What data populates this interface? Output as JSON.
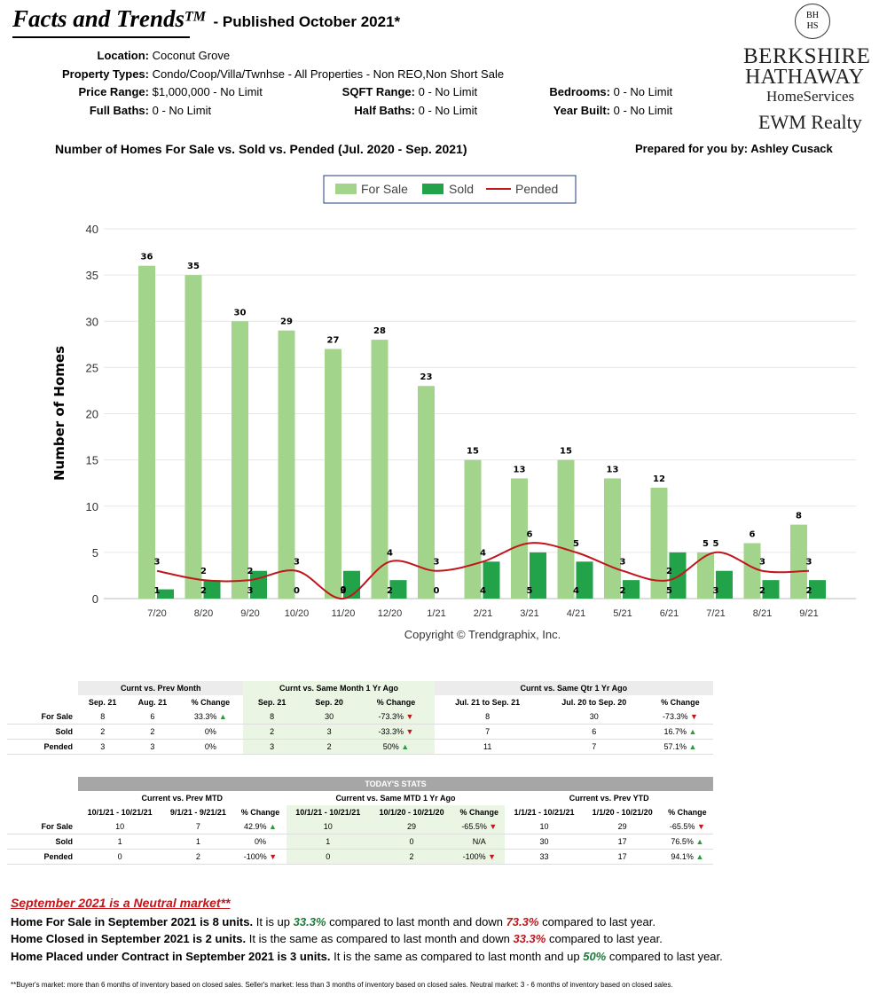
{
  "header": {
    "title": "Facts and Trends",
    "tm": "TM",
    "published": "- Published October 2021*",
    "criteria": {
      "location_label": "Location:",
      "location": "Coconut Grove",
      "ptype_label": "Property Types:",
      "ptype": "Condo/Coop/Villa/Twnhse - All Properties - Non REO,Non Short Sale",
      "price_label": "Price Range:",
      "price": "$1,000,000 - No Limit",
      "sqft_label": "SQFT Range:",
      "sqft": "0 - No Limit",
      "bed_label": "Bedrooms:",
      "bed": "0 - No Limit",
      "fbath_label": "Full Baths:",
      "fbath": "0 - No Limit",
      "hbath_label": "Half Baths:",
      "hbath": "0 - No Limit",
      "year_label": "Year Built:",
      "year": "0 - No Limit"
    },
    "chart_heading": "Number of Homes For Sale vs. Sold vs. Pended (Jul. 2020 - Sep. 2021)",
    "prepared": "Prepared for you by: Ashley Cusack"
  },
  "logo": {
    "seal": "BH\nHS",
    "line1": "BERKSHIRE",
    "line2": "HATHAWAY",
    "line3": "HomeServices",
    "line4": "EWM Realty"
  },
  "colors": {
    "for_sale": "#a3d48c",
    "sold": "#22a34a",
    "pended": "#c0161c",
    "grid": "#e6e6e6"
  },
  "chart_data": {
    "type": "bar",
    "categories": [
      "7/20",
      "8/20",
      "9/20",
      "10/20",
      "11/20",
      "12/20",
      "1/21",
      "2/21",
      "3/21",
      "4/21",
      "5/21",
      "6/21",
      "7/21",
      "8/21",
      "9/21"
    ],
    "series": [
      {
        "name": "For Sale",
        "type": "bar",
        "values": [
          36,
          35,
          30,
          29,
          27,
          28,
          23,
          15,
          13,
          15,
          13,
          12,
          5,
          6,
          8
        ]
      },
      {
        "name": "Sold",
        "type": "bar",
        "values": [
          1,
          2,
          3,
          0,
          3,
          2,
          0,
          4,
          5,
          4,
          2,
          5,
          3,
          2,
          2
        ]
      },
      {
        "name": "Pended",
        "type": "line",
        "values": [
          3,
          2,
          2,
          3,
          0,
          4,
          3,
          4,
          6,
          5,
          3,
          2,
          5,
          3,
          3
        ]
      }
    ],
    "ylabel": "Number of Homes",
    "xlabel": "",
    "ylim": [
      0,
      40
    ],
    "yticks": [
      0,
      5,
      10,
      15,
      20,
      25,
      30,
      35,
      40
    ],
    "grid": true,
    "legend": "top-center",
    "copyright": "Copyright © Trendgraphix, Inc."
  },
  "table1": {
    "groups": [
      "Curnt vs. Prev Month",
      "Curnt vs. Same Month 1 Yr Ago",
      "Curnt vs. Same Qtr 1 Yr Ago"
    ],
    "cols": [
      "Sep. 21",
      "Aug. 21",
      "% Change",
      "Sep. 21",
      "Sep. 20",
      "% Change",
      "Jul. 21 to Sep. 21",
      "Jul. 20 to Sep. 20",
      "% Change"
    ],
    "rows": [
      {
        "label": "For Sale",
        "cells": [
          "8",
          "6",
          "33.3%",
          "8",
          "30",
          "-73.3%",
          "8",
          "30",
          "-73.3%"
        ],
        "dirs": [
          "up",
          "dn",
          "dn"
        ]
      },
      {
        "label": "Sold",
        "cells": [
          "2",
          "2",
          "0%",
          "2",
          "3",
          "-33.3%",
          "7",
          "6",
          "16.7%"
        ],
        "dirs": [
          "",
          "dn",
          "up"
        ]
      },
      {
        "label": "Pended",
        "cells": [
          "3",
          "3",
          "0%",
          "3",
          "2",
          "50%",
          "11",
          "7",
          "57.1%"
        ],
        "dirs": [
          "",
          "up",
          "up"
        ]
      }
    ]
  },
  "table2": {
    "banner": "TODAY'S STATS",
    "groups": [
      "Current vs. Prev MTD",
      "Current vs. Same MTD 1 Yr Ago",
      "Current vs. Prev YTD"
    ],
    "cols": [
      "10/1/21 - 10/21/21",
      "9/1/21 - 9/21/21",
      "% Change",
      "10/1/21 - 10/21/21",
      "10/1/20 - 10/21/20",
      "% Change",
      "1/1/21 - 10/21/21",
      "1/1/20 - 10/21/20",
      "% Change"
    ],
    "rows": [
      {
        "label": "For Sale",
        "cells": [
          "10",
          "7",
          "42.9%",
          "10",
          "29",
          "-65.5%",
          "10",
          "29",
          "-65.5%"
        ],
        "dirs": [
          "up",
          "dn",
          "dn"
        ]
      },
      {
        "label": "Sold",
        "cells": [
          "1",
          "1",
          "0%",
          "1",
          "0",
          "N/A",
          "30",
          "17",
          "76.5%"
        ],
        "dirs": [
          "",
          "",
          "up"
        ]
      },
      {
        "label": "Pended",
        "cells": [
          "0",
          "2",
          "-100%",
          "0",
          "2",
          "-100%",
          "33",
          "17",
          "94.1%"
        ],
        "dirs": [
          "dn",
          "dn",
          "up"
        ]
      }
    ]
  },
  "summary": {
    "market": "September 2021 is a Neutral market**",
    "l1_bold": "Home For Sale in September 2021 is 8 units.",
    "l1_a": " It is up ",
    "l1_v1": "33.3%",
    "l1_b": " compared to last month and down ",
    "l1_v2": "73.3%",
    "l1_c": " compared to last year.",
    "l2_bold": "Home Closed in September 2021 is 2 units.",
    "l2_a": " It is the same as compared to last month and down ",
    "l2_v1": "33.3%",
    "l2_b": " compared to last year.",
    "l3_bold": "Home Placed under Contract in September 2021 is 3 units.",
    "l3_a": " It is the same as compared to last month and up ",
    "l3_v1": "50%",
    "l3_b": " compared to last year.",
    "footnote": "**Buyer's market: more than 6 months of inventory based on closed sales. Seller's market: less than 3 months of inventory based on closed sales. Neutral market: 3 - 6 months of inventory based on closed sales."
  }
}
